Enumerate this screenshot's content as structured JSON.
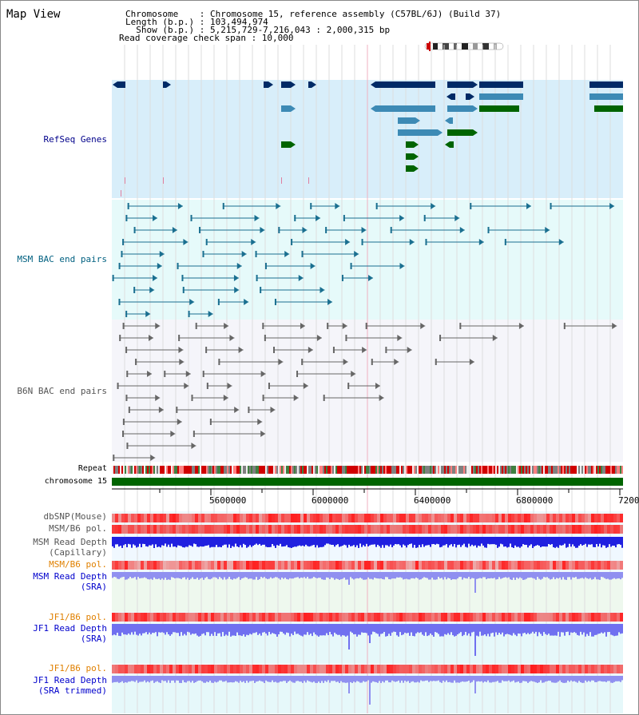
{
  "view": {
    "title": "Map View"
  },
  "info": {
    "chromosome_line": "Chromosome    : Chromosome 15, reference assembly (C57BL/6J) (Build 37)",
    "length_line": "Length (b.p.) : 103,494,974",
    "show_line": "  Show (b.p.) : 5,215,729-7,216,043 : 2,000,315 bp",
    "coverage_line": "Read coverage check span : 10,000"
  },
  "tracks": {
    "refseq": "RefSeq Genes",
    "msm_bac": "MSM BAC end pairs",
    "b6n_bac": "B6N BAC end pairs",
    "repeat": "Repeat",
    "chromosome": "chromosome 15",
    "dbsnp": "dbSNP(Mouse)",
    "msm_b6_pol_1": "MSM/B6 pol.",
    "msm_depth_cap_1": "MSM Read Depth",
    "msm_depth_cap_2": "(Capillary)",
    "msm_b6_pol_2": "MSM/B6 pol.",
    "msm_depth_sra_1": "MSM Read Depth",
    "msm_depth_sra_2": "(SRA)",
    "jf1_b6_pol_1": "JF1/B6 pol.",
    "jf1_depth_sra_1": "JF1 Read Depth",
    "jf1_depth_sra_2": "(SRA)",
    "jf1_b6_pol_2": "JF1/B6 pol.",
    "jf1_depth_trim_1": "JF1 Read Depth",
    "jf1_depth_trim_2": "(SRA trimmed)"
  },
  "axis": {
    "ticks": [
      "5600000",
      "6000000",
      "6400000",
      "6800000",
      "7200"
    ]
  },
  "colors": {
    "refseq_label": "#00008b",
    "msm_label": "#006080",
    "b6n_label": "#555555",
    "orange_label": "#e08000",
    "blue_label": "#0000cc",
    "refseq_bg": "#d8eefa",
    "msm_bg": "#e6fafa",
    "b6n_bg": "#f5f5fa",
    "chromosome_bar": "#006400",
    "gene_dark": "#002a66",
    "gene_mid": "#3d8ab5",
    "gene_green": "#006400"
  }
}
